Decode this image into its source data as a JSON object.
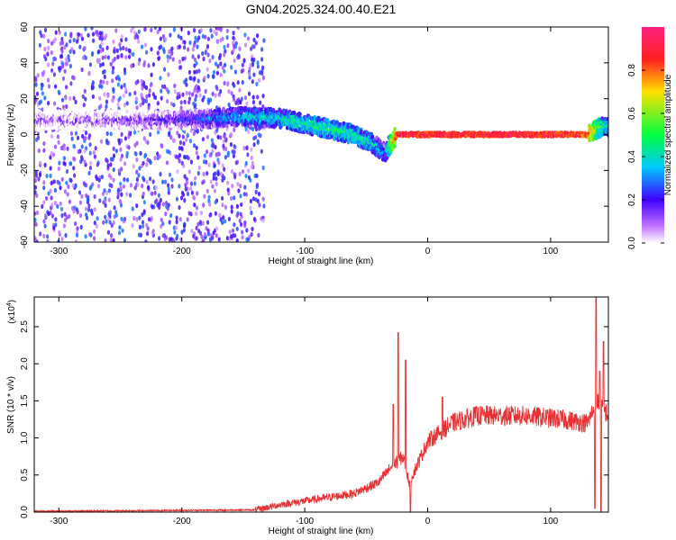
{
  "figure": {
    "title": "GN04.2025.324.00.40.E21"
  },
  "chart_data": [
    {
      "type": "heatmap",
      "xlabel": "Height of straight line (km)",
      "ylabel": "Frequency (Hz)",
      "xlim": [
        -320,
        147
      ],
      "ylim": [
        -60,
        60
      ],
      "x_ticks": [
        -300,
        -200,
        -100,
        0,
        100
      ],
      "y_ticks": [
        -60,
        -40,
        -20,
        0,
        20,
        40,
        60
      ],
      "colorbar": {
        "label": "Normalized spectral amplitude",
        "range": [
          0,
          1
        ],
        "ticks": [
          "0.0",
          "0.2",
          "0.4",
          "0.6",
          "0.8"
        ],
        "colors": [
          "#ffffff",
          "#b040ff",
          "#3000ff",
          "#00c8ff",
          "#00ff40",
          "#ffe000",
          "#ff2020",
          "#ff2080"
        ]
      },
      "ridge": {
        "x": [
          -315,
          -250,
          -200,
          -150,
          -120,
          -100,
          -80,
          -60,
          -45,
          -35,
          -25,
          0,
          50,
          100,
          130,
          140,
          147
        ],
        "y": [
          8,
          8,
          8,
          10,
          9,
          6,
          3,
          0,
          -5,
          -10,
          0,
          0,
          0,
          0,
          0,
          4,
          4
        ],
        "peak_amplitude": [
          0.2,
          0.22,
          0.3,
          0.45,
          0.5,
          0.55,
          0.55,
          0.55,
          0.5,
          0.4,
          1.0,
          1.0,
          1.0,
          1.0,
          0.95,
          0.6,
          0.5
        ]
      },
      "noise_band": {
        "x": [
          -320,
          -133
        ],
        "y": [
          -60,
          60
        ],
        "amplitude": [
          0.05,
          0.3
        ]
      }
    },
    {
      "type": "line",
      "xlabel": "Height of straight line (km)",
      "ylabel": "SNR (10 * v/v)",
      "multiplier": "(x10",
      "multiplier_exp": "4",
      "xlim": [
        -320,
        147
      ],
      "ylim": [
        0,
        2.9
      ],
      "x_ticks": [
        -300,
        -200,
        -100,
        0,
        100
      ],
      "y_ticks": [
        "0.0",
        "0.5",
        "1.0",
        "1.5",
        "2.0",
        "2.5"
      ],
      "color": "#e83030",
      "baseline": {
        "x": [
          -320,
          -140,
          -120,
          -100,
          -60,
          -40,
          -30,
          -20,
          -15,
          0,
          20,
          40,
          80,
          110,
          130,
          138,
          147
        ],
        "y": [
          0.01,
          0.03,
          0.1,
          0.15,
          0.25,
          0.4,
          0.6,
          0.75,
          0.4,
          0.95,
          1.2,
          1.3,
          1.3,
          1.25,
          1.2,
          1.5,
          1.3
        ]
      },
      "spikes": [
        {
          "x": -24,
          "y": 2.42
        },
        {
          "x": -18,
          "y": 2.05
        },
        {
          "x": -28,
          "y": 1.45
        },
        {
          "x": 137,
          "y": 2.9
        },
        {
          "x": 143,
          "y": 2.3
        },
        {
          "x": 140,
          "y": 1.9
        },
        {
          "x": 12,
          "y": 1.55
        }
      ],
      "dips": [
        {
          "x": -14,
          "y": 0.0
        },
        {
          "x": 136,
          "y": 0.05
        },
        {
          "x": 141,
          "y": 0.0
        }
      ]
    }
  ]
}
